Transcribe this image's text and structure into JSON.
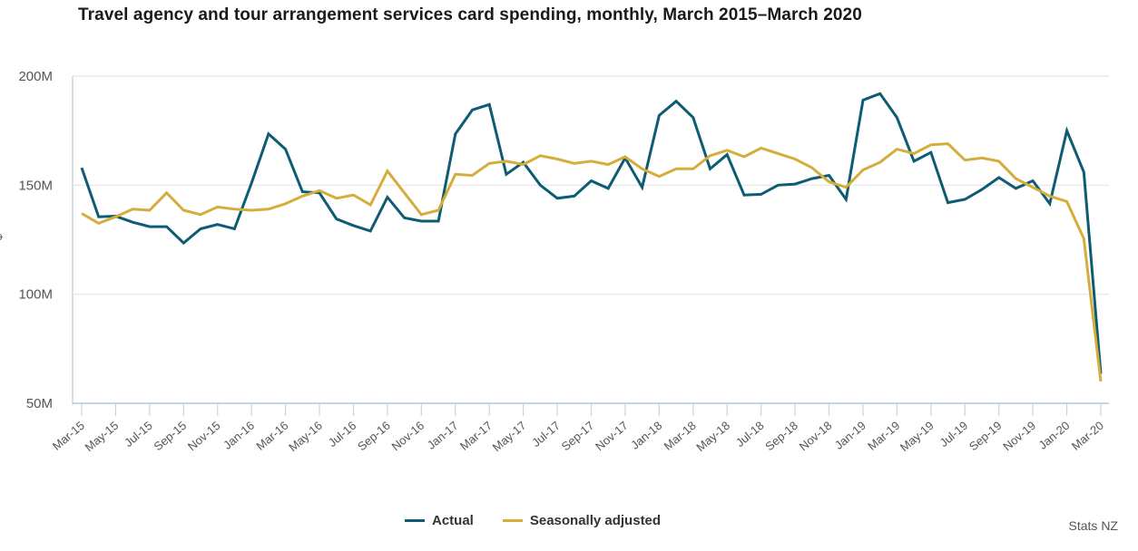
{
  "chart_data": {
    "type": "line",
    "title": "Travel agency and tour arrangement services card spending, monthly, March 2015–March 2020",
    "xlabel": "",
    "ylabel": "$",
    "ylim": [
      50,
      200
    ],
    "yticks": [
      50,
      100,
      150,
      200
    ],
    "ytick_labels": [
      "50M",
      "100M",
      "150M",
      "200M"
    ],
    "grid": true,
    "legend_position": "bottom-center",
    "x": [
      "Mar-15",
      "Apr-15",
      "May-15",
      "Jun-15",
      "Jul-15",
      "Aug-15",
      "Sep-15",
      "Oct-15",
      "Nov-15",
      "Dec-15",
      "Jan-16",
      "Feb-16",
      "Mar-16",
      "Apr-16",
      "May-16",
      "Jun-16",
      "Jul-16",
      "Aug-16",
      "Sep-16",
      "Oct-16",
      "Nov-16",
      "Dec-16",
      "Jan-17",
      "Feb-17",
      "Mar-17",
      "Apr-17",
      "May-17",
      "Jun-17",
      "Jul-17",
      "Aug-17",
      "Sep-17",
      "Oct-17",
      "Nov-17",
      "Dec-17",
      "Jan-18",
      "Feb-18",
      "Mar-18",
      "Apr-18",
      "May-18",
      "Jun-18",
      "Jul-18",
      "Aug-18",
      "Sep-18",
      "Oct-18",
      "Nov-18",
      "Dec-18",
      "Jan-19",
      "Feb-19",
      "Mar-19",
      "Apr-19",
      "May-19",
      "Jun-19",
      "Jul-19",
      "Aug-19",
      "Sep-19",
      "Oct-19",
      "Nov-19",
      "Dec-19",
      "Jan-20",
      "Feb-20",
      "Mar-20"
    ],
    "xtick_labels": [
      "Mar-15",
      "May-15",
      "Jul-15",
      "Sep-15",
      "Nov-15",
      "Jan-16",
      "Mar-16",
      "May-16",
      "Jul-16",
      "Sep-16",
      "Nov-16",
      "Jan-17",
      "Mar-17",
      "May-17",
      "Jul-17",
      "Sep-17",
      "Nov-17",
      "Jan-18",
      "Mar-18",
      "May-18",
      "Jul-18",
      "Sep-18",
      "Nov-18",
      "Jan-19",
      "Mar-19",
      "May-19",
      "Jul-19",
      "Sep-19",
      "Nov-19",
      "Jan-20",
      "Mar-20"
    ],
    "series": [
      {
        "name": "Actual",
        "color": "#0d5c73",
        "values": [
          158,
          135.5,
          135.8,
          133,
          131,
          131,
          123.5,
          130,
          132,
          130,
          151,
          173.5,
          166.5,
          147,
          146.5,
          134.5,
          131.5,
          129,
          144.5,
          135,
          133.5,
          133.5,
          173.5,
          184.5,
          187,
          155,
          160.5,
          150,
          144,
          145,
          152,
          148.5,
          162.5,
          149,
          182,
          188.5,
          181,
          157.5,
          164,
          145.5,
          145.8,
          150,
          150.5,
          153,
          154.5,
          143.5,
          189,
          192,
          181,
          161,
          165,
          142,
          143.5,
          148,
          153.5,
          148.5,
          152,
          141.5,
          175,
          156,
          63.5
        ]
      },
      {
        "name": "Seasonally adjusted",
        "color": "#d4ad3b",
        "values": [
          137,
          132.5,
          135.5,
          139,
          138.5,
          146.5,
          138.5,
          136.5,
          140,
          139,
          138.5,
          139,
          141.5,
          145,
          147.5,
          144,
          145.5,
          141,
          156.5,
          146.5,
          136.5,
          138.5,
          155,
          154.5,
          160,
          161,
          159.5,
          163.5,
          162,
          160,
          161,
          159.5,
          163,
          157.5,
          154,
          157.5,
          157.5,
          163.5,
          166,
          163,
          167,
          164.5,
          162,
          158,
          151.5,
          149,
          157,
          160.5,
          166.5,
          164.5,
          168.5,
          169,
          161.5,
          162.5,
          161,
          153,
          149,
          145,
          142.5,
          125.5,
          60
        ]
      }
    ]
  },
  "source": "Stats NZ",
  "ylabel_cut": "–"
}
